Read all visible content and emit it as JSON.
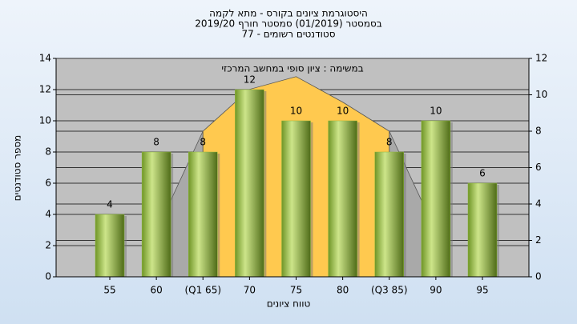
{
  "chart_data": {
    "type": "bar",
    "title": "היסטוגרמת ציונים בקורס - מתא לקמה",
    "subtitle": [
      "בסמסטר (01/2019) סמסטר חורף 2019/20",
      "סטודנטים רשומים - 77"
    ],
    "annotation": "במשימה : ציון סופי במחשב המרכזי",
    "x_label": "טווח ציונים",
    "y_label": "מספר סטודנטים",
    "categories": [
      "55",
      "60",
      "(Q1 65)",
      "70",
      "75",
      "80",
      "(Q3 85)",
      "90",
      "95"
    ],
    "series": [
      {
        "type": "area",
        "axis": "y2",
        "color": "#a9a9a9",
        "values": [
          null,
          2.5,
          8,
          null,
          null,
          null,
          8,
          2.5,
          null
        ]
      },
      {
        "type": "area",
        "axis": "y2",
        "color": "#ffc94f",
        "values": [
          null,
          null,
          8,
          10.3,
          11,
          9.6,
          8,
          null,
          null
        ]
      },
      {
        "type": "bar",
        "axis": "y",
        "color": "#8cb83a",
        "values": [
          4,
          8,
          8,
          12,
          10,
          10,
          8,
          10,
          6
        ]
      }
    ],
    "ylim": [
      0,
      14
    ],
    "yticks": [
      0,
      2,
      4,
      6,
      8,
      10,
      12,
      14
    ],
    "y2lim": [
      0,
      12
    ],
    "y2ticks": [
      0,
      2,
      4,
      6,
      8,
      10,
      12
    ],
    "grid": true
  }
}
